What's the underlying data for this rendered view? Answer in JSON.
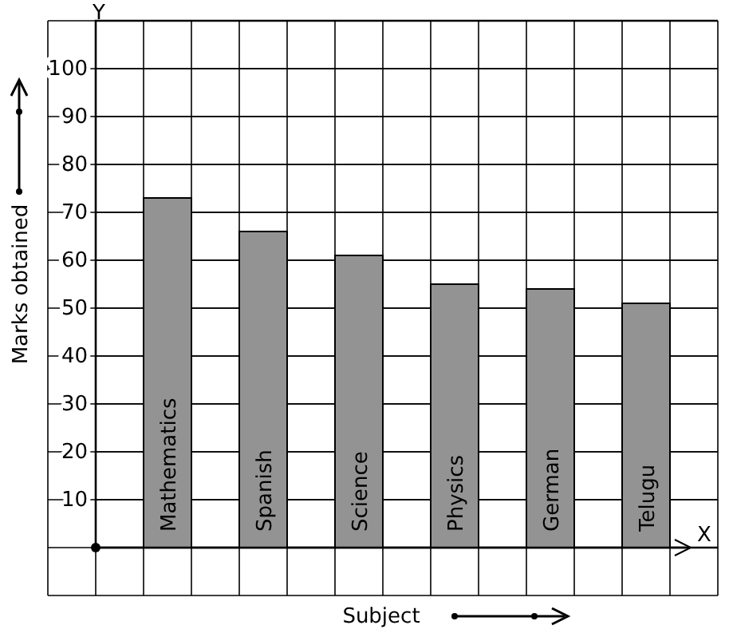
{
  "chart_data": {
    "type": "bar",
    "xlabel": "Subject",
    "ylabel": "Marks obtained",
    "categories": [
      "Mathematics",
      "Spanish",
      "Science",
      "Physics",
      "German",
      "Telugu"
    ],
    "values": [
      73,
      66,
      61,
      55,
      54,
      51
    ],
    "color": "#939393",
    "ylim": [
      0,
      110
    ],
    "yticks": [
      10,
      20,
      30,
      40,
      50,
      60,
      70,
      80,
      90,
      100
    ],
    "grid": true,
    "annotations": [
      "Y",
      "X"
    ]
  }
}
